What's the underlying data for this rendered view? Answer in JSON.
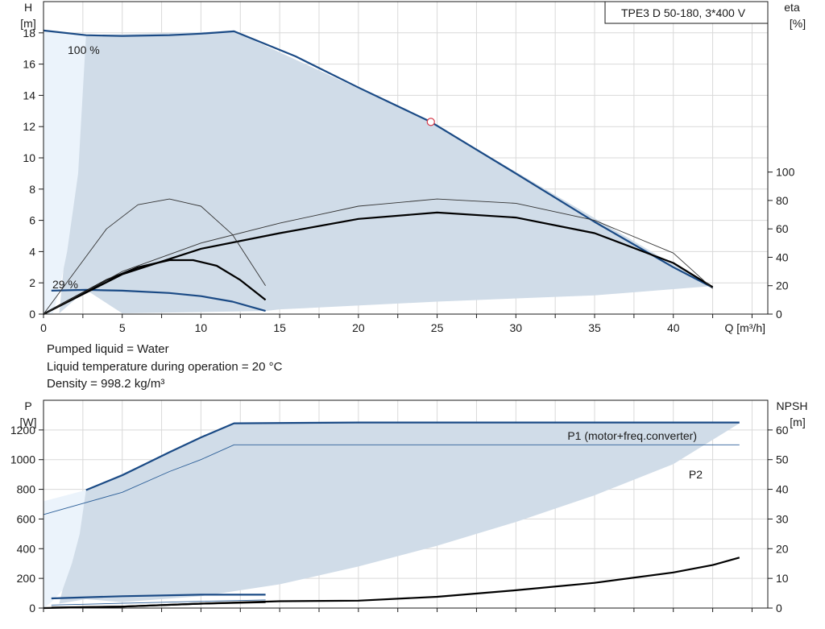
{
  "chart_data": [
    {
      "type": "line",
      "title": "TPE3 D 50-180, 3*400 V",
      "xlabel": "Q [m³/h]",
      "ylabel_left": [
        "H",
        "[m]"
      ],
      "ylabel_right": [
        "eta",
        "[%]"
      ],
      "xlim": [
        0,
        46
      ],
      "ylim_left": [
        0,
        20
      ],
      "ylim_right": [
        0,
        220
      ],
      "x_ticks": [
        0,
        5,
        10,
        15,
        20,
        25,
        30,
        35,
        40
      ],
      "y_ticks_left": [
        0,
        2,
        4,
        6,
        8,
        10,
        12,
        14,
        16,
        18
      ],
      "y_ticks_right": [
        0,
        20,
        40,
        60,
        80,
        100
      ],
      "grid": true,
      "annotations": [
        "100 %",
        "29 %"
      ],
      "duty_point": {
        "x": 24.6,
        "y": 12.3
      },
      "regions": [
        {
          "name": "operating-area",
          "color": "#d0dce8",
          "x": [
            2.7,
            12.1,
            24.6,
            42.5,
            42.5,
            35,
            25,
            15,
            14.1,
            5,
            2.7,
            1.0
          ],
          "y": [
            17.85,
            18.1,
            12.3,
            1.7,
            1.8,
            1.2,
            0.8,
            0.3,
            0.2,
            0.05,
            1.55,
            0.05
          ]
        },
        {
          "name": "low-flow-area",
          "color": "#ebf3fb",
          "x": [
            0,
            2.7,
            2.2,
            1.5,
            1.0,
            0.6,
            0.0
          ],
          "y": [
            18.1,
            17.85,
            9.0,
            4.0,
            1.55,
            0.05,
            0.0
          ]
        }
      ],
      "series": [
        {
          "name": "100 %",
          "color": "#1a4a85",
          "x": [
            0,
            2.7,
            5,
            8,
            10,
            12.1,
            16,
            20,
            24.6,
            30,
            35,
            40,
            42.5
          ],
          "y": [
            18.15,
            17.85,
            17.8,
            17.85,
            17.95,
            18.1,
            16.5,
            14.5,
            12.3,
            9.0,
            5.9,
            3.0,
            1.7
          ]
        },
        {
          "name": "29 %",
          "color": "#1a4a85",
          "x": [
            0.5,
            2.7,
            5,
            8,
            10,
            12,
            14.1
          ],
          "y": [
            1.5,
            1.55,
            1.5,
            1.35,
            1.15,
            0.8,
            0.2
          ]
        },
        {
          "name": "eta 100 %",
          "color": "#000000",
          "axis": "right",
          "x": [
            0,
            5,
            10,
            15,
            20,
            25,
            30,
            35,
            40,
            42.5
          ],
          "y": [
            0,
            28,
            46,
            57,
            67,
            71.5,
            68,
            57,
            36,
            19
          ]
        },
        {
          "name": "eta 29 %",
          "color": "#000000",
          "axis": "right",
          "x": [
            0,
            2,
            4,
            6,
            8,
            9.5,
            11,
            12.5,
            14.1
          ],
          "y": [
            0,
            12,
            24,
            33,
            38,
            38,
            34,
            24,
            10
          ]
        },
        {
          "name": "eta-thin 100 %",
          "color": "#333333",
          "axis": "right",
          "x": [
            0,
            5,
            10,
            15,
            20,
            25,
            30,
            35,
            40,
            42.5
          ],
          "y": [
            0,
            30,
            50,
            64,
            76,
            81,
            78,
            66,
            43,
            18
          ]
        },
        {
          "name": "eta-thin 29 %",
          "color": "#333333",
          "axis": "right",
          "x": [
            0,
            2,
            4,
            6,
            8,
            10,
            12,
            14.1
          ],
          "y": [
            0,
            30,
            60,
            77,
            81,
            76,
            56,
            20
          ]
        }
      ]
    },
    {
      "type": "line",
      "title": "",
      "xlabel": "",
      "ylabel_left": [
        "P",
        "[W]"
      ],
      "ylabel_right": [
        "NPSH",
        "[m]"
      ],
      "xlim": [
        0,
        46
      ],
      "ylim_left": [
        0,
        1400
      ],
      "ylim_right": [
        0,
        70
      ],
      "y_ticks_left": [
        0,
        200,
        400,
        600,
        800,
        1000,
        1200
      ],
      "y_ticks_right": [
        0,
        10,
        20,
        30,
        40,
        50,
        60
      ],
      "grid": true,
      "regions": [
        {
          "name": "operating-area",
          "color": "#d0dce8",
          "x": [
            2.7,
            12.1,
            44.2,
            40,
            35,
            30,
            25,
            20,
            15,
            10,
            5,
            2.7,
            1.0
          ],
          "y": [
            795,
            1245,
            1245,
            970,
            760,
            580,
            420,
            280,
            160,
            80,
            40,
            60,
            30
          ]
        },
        {
          "name": "low-flow-area",
          "color": "#ebf3fb",
          "x": [
            0,
            2.7,
            2.3,
            1.8,
            1.2,
            0.5,
            0
          ],
          "y": [
            720,
            795,
            500,
            300,
            120,
            40,
            0
          ]
        }
      ],
      "annotations": [
        "P1 (motor+freq.converter)",
        "P2"
      ],
      "series": [
        {
          "name": "P1 (motor+freq.converter)",
          "color": "#1a4a85",
          "x": [
            2.7,
            5,
            8,
            10,
            12.1,
            20,
            30,
            44.2
          ],
          "y": [
            795,
            895,
            1050,
            1150,
            1245,
            1250,
            1250,
            1250
          ]
        },
        {
          "name": "P2",
          "color": "#2c5f98",
          "x": [
            0,
            5,
            8,
            10,
            12.1,
            20,
            30,
            44.2
          ],
          "y": [
            630,
            780,
            920,
            1000,
            1100,
            1100,
            1100,
            1100
          ]
        },
        {
          "name": "P1 29 %",
          "color": "#1a4a85",
          "x": [
            0.5,
            5,
            10,
            14.1
          ],
          "y": [
            65,
            80,
            90,
            90
          ]
        },
        {
          "name": "P2 29 %",
          "color": "#2c5f98",
          "x": [
            0.5,
            5,
            10,
            14.1
          ],
          "y": [
            20,
            32,
            45,
            55
          ]
        },
        {
          "name": "NPSH",
          "color": "#000000",
          "axis": "right",
          "x": [
            0,
            5,
            10,
            15,
            20,
            25,
            30,
            35,
            40,
            42.5,
            44.2
          ],
          "y": [
            0,
            0.5,
            1.5,
            2.3,
            2.5,
            3.8,
            6,
            8.5,
            12,
            14.5,
            17
          ]
        },
        {
          "name": "NPSH 29 %",
          "color": "#000000",
          "axis": "right",
          "x": [
            0.5,
            5,
            10,
            14.1
          ],
          "y": [
            0.2,
            0.5,
            1.5,
            2.0
          ]
        }
      ]
    }
  ],
  "liquid_info": [
    "Pumped liquid = Water",
    "Liquid temperature during operation = 20 °C",
    "Density = 998.2 kg/m³"
  ]
}
